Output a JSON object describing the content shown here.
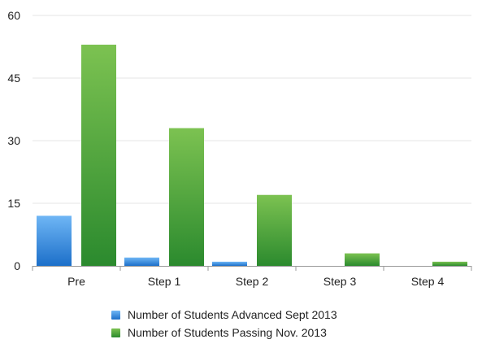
{
  "chart_data": {
    "type": "bar",
    "categories": [
      "Pre",
      "Step 1",
      "Step 2",
      "Step 3",
      "Step 4"
    ],
    "series": [
      {
        "name": "Number of Students Advanced Sept 2013",
        "values": [
          12,
          2,
          1,
          0,
          0
        ],
        "color": "#2a7fd8"
      },
      {
        "name": "Number of Students Passing Nov. 2013",
        "values": [
          53,
          33,
          17,
          3,
          1
        ],
        "color": "#4aa83a"
      }
    ],
    "yticks": [
      "0",
      "15",
      "30",
      "45",
      "60"
    ],
    "ylim": [
      0,
      60
    ],
    "grid": true,
    "legend_position": "bottom",
    "title": "",
    "xlabel": "",
    "ylabel": ""
  }
}
